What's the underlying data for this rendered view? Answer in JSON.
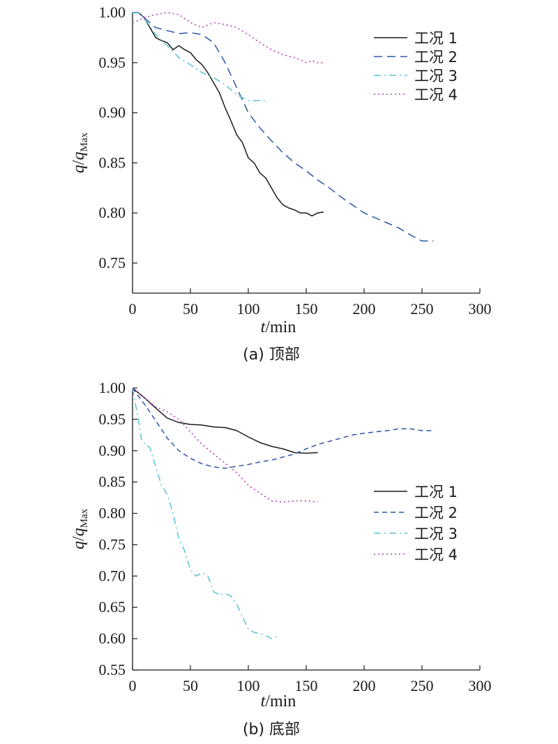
{
  "colors": {
    "series_1": "#1a1a1a",
    "series_2": "#2b55a8",
    "series_3": "#58c4d4",
    "series_4": "#b53fb8"
  },
  "chart_data": [
    {
      "type": "line",
      "caption": "(a) 顶部",
      "xlabel_italic": "t",
      "xlabel_unit": "/min",
      "ylabel_q": "q",
      "ylabel_sep": "/",
      "ylabel_sub": "Max",
      "xlim": [
        0,
        300
      ],
      "ylim": [
        0.72,
        1.0
      ],
      "xticks": [
        0,
        50,
        100,
        150,
        200,
        250,
        300
      ],
      "yticks": [
        0.75,
        0.8,
        0.85,
        0.9,
        0.95,
        1.0
      ],
      "ytick_labels": [
        "0.75",
        "0.80",
        "0.85",
        "0.90",
        "0.95",
        "1.00"
      ],
      "legend": "top-right",
      "series": [
        {
          "name": "工况 1",
          "color": "#1a1a1a",
          "dash": "solid",
          "points": [
            [
              0,
              1.0
            ],
            [
              5,
              1.0
            ],
            [
              10,
              0.995
            ],
            [
              15,
              0.985
            ],
            [
              20,
              0.975
            ],
            [
              25,
              0.972
            ],
            [
              30,
              0.97
            ],
            [
              35,
              0.963
            ],
            [
              40,
              0.967
            ],
            [
              45,
              0.963
            ],
            [
              50,
              0.96
            ],
            [
              55,
              0.953
            ],
            [
              60,
              0.948
            ],
            [
              65,
              0.94
            ],
            [
              70,
              0.93
            ],
            [
              75,
              0.92
            ],
            [
              80,
              0.905
            ],
            [
              85,
              0.892
            ],
            [
              90,
              0.878
            ],
            [
              95,
              0.87
            ],
            [
              100,
              0.855
            ],
            [
              105,
              0.85
            ],
            [
              110,
              0.84
            ],
            [
              115,
              0.835
            ],
            [
              120,
              0.825
            ],
            [
              125,
              0.815
            ],
            [
              130,
              0.808
            ],
            [
              135,
              0.805
            ],
            [
              140,
              0.803
            ],
            [
              145,
              0.8
            ],
            [
              150,
              0.8
            ],
            [
              155,
              0.797
            ],
            [
              160,
              0.8
            ],
            [
              165,
              0.801
            ]
          ]
        },
        {
          "name": "工况 2",
          "color": "#2b55a8",
          "dash": "long",
          "points": [
            [
              0,
              1.0
            ],
            [
              5,
              1.0
            ],
            [
              10,
              0.995
            ],
            [
              20,
              0.985
            ],
            [
              30,
              0.982
            ],
            [
              40,
              0.979
            ],
            [
              50,
              0.98
            ],
            [
              60,
              0.978
            ],
            [
              70,
              0.97
            ],
            [
              80,
              0.95
            ],
            [
              90,
              0.925
            ],
            [
              100,
              0.9
            ],
            [
              110,
              0.885
            ],
            [
              120,
              0.872
            ],
            [
              130,
              0.86
            ],
            [
              140,
              0.85
            ],
            [
              150,
              0.842
            ],
            [
              160,
              0.833
            ],
            [
              170,
              0.825
            ],
            [
              180,
              0.816
            ],
            [
              190,
              0.808
            ],
            [
              200,
              0.8
            ],
            [
              210,
              0.795
            ],
            [
              220,
              0.79
            ],
            [
              230,
              0.785
            ],
            [
              240,
              0.778
            ],
            [
              250,
              0.772
            ],
            [
              260,
              0.772
            ]
          ]
        },
        {
          "name": "工况 3",
          "color": "#58c4d4",
          "dash": "dashdot",
          "points": [
            [
              0,
              1.0
            ],
            [
              5,
              1.0
            ],
            [
              10,
              0.995
            ],
            [
              20,
              0.978
            ],
            [
              30,
              0.967
            ],
            [
              40,
              0.955
            ],
            [
              50,
              0.948
            ],
            [
              60,
              0.94
            ],
            [
              70,
              0.935
            ],
            [
              80,
              0.928
            ],
            [
              90,
              0.918
            ],
            [
              100,
              0.912
            ],
            [
              105,
              0.912
            ],
            [
              115,
              0.912
            ]
          ]
        },
        {
          "name": "工况 4",
          "color": "#b53fb8",
          "dash": "dotted",
          "points": [
            [
              0,
              0.99
            ],
            [
              5,
              0.992
            ],
            [
              10,
              0.995
            ],
            [
              20,
              0.998
            ],
            [
              30,
              1.0
            ],
            [
              40,
              0.998
            ],
            [
              50,
              0.99
            ],
            [
              60,
              0.985
            ],
            [
              70,
              0.99
            ],
            [
              80,
              0.988
            ],
            [
              90,
              0.985
            ],
            [
              100,
              0.978
            ],
            [
              110,
              0.97
            ],
            [
              120,
              0.963
            ],
            [
              130,
              0.958
            ],
            [
              140,
              0.955
            ],
            [
              145,
              0.953
            ],
            [
              150,
              0.95
            ],
            [
              155,
              0.952
            ],
            [
              160,
              0.95
            ],
            [
              165,
              0.95
            ]
          ]
        }
      ]
    },
    {
      "type": "line",
      "caption": "(b) 底部",
      "xlabel_italic": "t",
      "xlabel_unit": "/min",
      "ylabel_q": "q",
      "ylabel_sep": "/",
      "ylabel_sub": "Max",
      "xlim": [
        0,
        300
      ],
      "ylim": [
        0.55,
        1.0
      ],
      "xticks": [
        0,
        50,
        100,
        150,
        200,
        250,
        300
      ],
      "yticks": [
        0.55,
        0.6,
        0.65,
        0.7,
        0.75,
        0.8,
        0.85,
        0.9,
        0.95,
        1.0
      ],
      "ytick_labels": [
        "0.55",
        "0.60",
        "0.65",
        "0.70",
        "0.75",
        "0.80",
        "0.85",
        "0.90",
        "0.95",
        "1.00"
      ],
      "legend": "right",
      "series": [
        {
          "name": "工况 1",
          "color": "#1a1a1a",
          "dash": "solid",
          "points": [
            [
              0,
              1.0
            ],
            [
              10,
              0.985
            ],
            [
              20,
              0.968
            ],
            [
              30,
              0.952
            ],
            [
              40,
              0.945
            ],
            [
              50,
              0.942
            ],
            [
              60,
              0.941
            ],
            [
              70,
              0.938
            ],
            [
              80,
              0.937
            ],
            [
              90,
              0.932
            ],
            [
              100,
              0.922
            ],
            [
              110,
              0.913
            ],
            [
              120,
              0.907
            ],
            [
              130,
              0.903
            ],
            [
              140,
              0.897
            ],
            [
              150,
              0.896
            ],
            [
              160,
              0.897
            ]
          ]
        },
        {
          "name": "工况 2",
          "color": "#2b55a8",
          "dash": "short",
          "points": [
            [
              0,
              1.0
            ],
            [
              10,
              0.975
            ],
            [
              20,
              0.948
            ],
            [
              30,
              0.92
            ],
            [
              40,
              0.9
            ],
            [
              50,
              0.888
            ],
            [
              60,
              0.879
            ],
            [
              70,
              0.874
            ],
            [
              80,
              0.872
            ],
            [
              90,
              0.875
            ],
            [
              100,
              0.878
            ],
            [
              110,
              0.882
            ],
            [
              120,
              0.885
            ],
            [
              130,
              0.89
            ],
            [
              140,
              0.895
            ],
            [
              150,
              0.903
            ],
            [
              160,
              0.91
            ],
            [
              170,
              0.915
            ],
            [
              180,
              0.92
            ],
            [
              190,
              0.925
            ],
            [
              200,
              0.928
            ],
            [
              210,
              0.93
            ],
            [
              220,
              0.932
            ],
            [
              230,
              0.935
            ],
            [
              240,
              0.935
            ],
            [
              250,
              0.932
            ],
            [
              260,
              0.932
            ]
          ]
        },
        {
          "name": "工况 3",
          "color": "#58c4d4",
          "dash": "dashdot",
          "points": [
            [
              0,
              1.0
            ],
            [
              5,
              0.95
            ],
            [
              8,
              0.915
            ],
            [
              15,
              0.905
            ],
            [
              20,
              0.875
            ],
            [
              25,
              0.845
            ],
            [
              30,
              0.83
            ],
            [
              35,
              0.8
            ],
            [
              40,
              0.76
            ],
            [
              45,
              0.74
            ],
            [
              50,
              0.71
            ],
            [
              55,
              0.7
            ],
            [
              60,
              0.705
            ],
            [
              65,
              0.7
            ],
            [
              70,
              0.675
            ],
            [
              75,
              0.67
            ],
            [
              80,
              0.672
            ],
            [
              85,
              0.668
            ],
            [
              90,
              0.655
            ],
            [
              95,
              0.635
            ],
            [
              100,
              0.615
            ],
            [
              105,
              0.61
            ],
            [
              110,
              0.608
            ],
            [
              115,
              0.605
            ],
            [
              120,
              0.6
            ],
            [
              125,
              0.604
            ]
          ]
        },
        {
          "name": "工况 4",
          "color": "#b53fb8",
          "dash": "dotted",
          "points": [
            [
              0,
              1.0
            ],
            [
              10,
              0.985
            ],
            [
              20,
              0.97
            ],
            [
              30,
              0.962
            ],
            [
              40,
              0.95
            ],
            [
              50,
              0.93
            ],
            [
              60,
              0.91
            ],
            [
              70,
              0.895
            ],
            [
              80,
              0.88
            ],
            [
              90,
              0.865
            ],
            [
              100,
              0.845
            ],
            [
              110,
              0.832
            ],
            [
              120,
              0.82
            ],
            [
              130,
              0.818
            ],
            [
              140,
              0.82
            ],
            [
              150,
              0.82
            ],
            [
              160,
              0.818
            ]
          ]
        }
      ]
    }
  ]
}
